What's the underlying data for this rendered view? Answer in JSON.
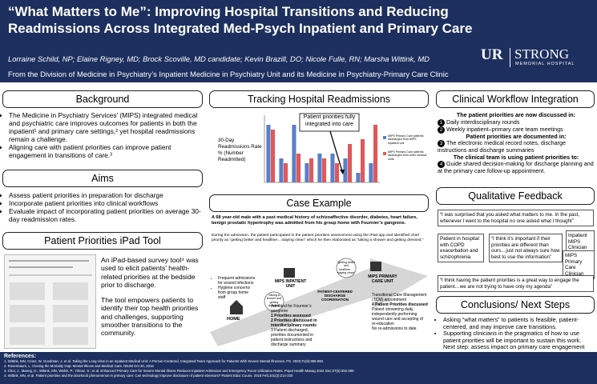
{
  "header": {
    "title": "“What Matters to Me”: Improving Hospital Transitions and Reducing Readmissions Across Integrated Med-Psych Inpatient and Primary Care",
    "authors": "Lorraine Schild, NP; Elaine Rigney, MD; Brock Scoville, MD candidate; Kevin Brazill, DO; Nicole Fulle, RN; Marsha Wittink, MD",
    "affiliation": "From the Division of Medicine in Psychiatry’s Inpatient Medicine in Psychiatry Unit and its Medicine in Psychiatry-Primary Care Clinic",
    "logo": {
      "ur": "UR",
      "strong": "STRONG",
      "sub": "MEMORIAL HOSPITAL"
    }
  },
  "background": {
    "heading": "Background",
    "bullets": [
      "The Medicine in Psychiatry Services’ (MIPS) integrated medical and psychiatric care improves outcomes for patients in both the inpatient¹ and primary care settings,² yet hospital readmissions remain a challenge.",
      "Aligning care with patient priorities can improve patient engagement in transitions of care.³"
    ]
  },
  "aims": {
    "heading": "Aims",
    "bullets": [
      "Assess patient priorities in preparation for discharge",
      "Incorporate patient priorities into clinical workflows",
      "Evaluate impact of incorporating patient priorities on average 30-day readmission rates."
    ]
  },
  "ipad": {
    "heading": "Patient Priorities iPad Tool",
    "paragraphs": [
      "An iPad-based survey tool⁴ was used to elicit patients’ health-related priorities at the bedside prior to discharge.",
      "The tool empowers patients to identify their top health priorities and challenges, supporting smoother transitions to the community."
    ]
  },
  "tracking": {
    "heading": "Tracking Hospital Readmissions",
    "chart": {
      "type": "bar",
      "y_label": "30-Day Readmissions Rate % (Number Readmitted)",
      "callout": "Patient priorities fully integrated into care",
      "ylim": [
        0,
        70
      ],
      "series": [
        {
          "name": "MIPS Primary Care patients discharged from MIPS inpatient unit",
          "color": "#5b7fc7",
          "values": [
            60,
            25,
            60,
            20,
            30,
            30,
            25,
            10,
            20
          ]
        },
        {
          "name": "MIPS Primary Care patients discharged from other medical units",
          "color": "#e0585b",
          "values": [
            55,
            20,
            30,
            25,
            25,
            20,
            40,
            45,
            60
          ]
        }
      ]
    }
  },
  "case": {
    "heading": "Case Example",
    "intro": "A 68 year-old male with a past medical history of schizoaffective disorder, diabetes, heart failure, benign prostatic hypertrophy was admitted from his group home with Fournier’s gangrene.",
    "detail": "During the admission, the patient participated in the patient priorities assessment using the iPad app and identified chief priority as “getting better and healthier…staying clean” which he then elaborated as “taking a shower and getting dressed.”",
    "home": {
      "label": "HOME",
      "notes": [
        "Frequent admissions for wound infections",
        "Hygiene concerns from group home staff"
      ]
    },
    "inpatient": {
      "label": "MIPS INPATIENT UNIT",
      "notes": [
        "Admitted for Fournier’s gangrene",
        "1 Priorities assessed",
        "2 Priorities discussed in interdisciplinary rounds",
        "3 Patient discharged, priorities documented in patient instructions and discharge summary"
      ]
    },
    "coordination": {
      "label": "PATIENT-CENTERED DISCHARGE COORDINATION"
    },
    "primary": {
      "label": "MIPS PRIMARY CARE UNIT",
      "notes": [
        "Transitional Care Management (TCM) appointment",
        "4 Patient Priorities discussed",
        "Patient showering daily, independently performing wound care and accepting of re-education",
        "No re-admissions to date"
      ]
    },
    "bubble1": "“getting better and healthier… staying clean”",
    "bubble2": "“taking a shower and getting dressed”"
  },
  "workflow": {
    "heading": "Clinical Workflow Integration",
    "lead1": "The patient priorities are now discussed in:",
    "item1": "Daily interdisciplinary rounds",
    "item2": "Weekly inpatient–primary care team meetings",
    "lead2": "Patient priorities are documented in:",
    "item3": "The electronic medical record notes, discharge instructions and discharge summaries",
    "lead3": "The clinical team is using patient priorities to:",
    "item4": "Guide shared decision-making for discharge planning and at the primary care follow-up appointment."
  },
  "feedback": {
    "heading": "Qualitative Feedback",
    "quote1": "“I was surprised that you asked what matters to me. In the past, whenever I went to the hospital no one asked what I thought”",
    "who1": "Patient in hospital with COPD exacerbation and schizophrenia",
    "quote2": "“I think it’s important if their priorities are different than ours…just not always sure how best to use the information”",
    "who2": "Inpatient MIPS Clinician",
    "who3": "MIPS Primary Care Clinician",
    "quote3": "“I think having the patient priorities is a great way to engage the patient…we are not trying to have only my agenda”"
  },
  "conclusions": {
    "heading": "Conclusions/ Next Steps",
    "bullets": [
      "Asking “what matters” to patients is feasible, patient-centered, and may improve care transitions.",
      "Supporting clinicians in the pragmatics of how to use patient priorities will be important to sustain this work. Next step: assess impact on primary care engagement"
    ]
  },
  "references": {
    "heading": "References:",
    "items": [
      "1. Wittink, MN, Cross, W, Goodman, J, et al. Taking the Long View in an Inpatient Medical Unit: A Person-Centered, Integrated Team Approach for Patients With Severe Mental Illnesses. PS. 2020;71(9):885-892.",
      "2. Rosenbaum, L. Closing the Mortality Gap: Mental Illness and Medical Care. NEJM Oct 20, 2016",
      "3. Choi, J., Maeng, D., Wittink, MN, Walsh, P., Yilmaz, S.; et al. Enhanced Primary Care for Severe Mental Illness Reduces Inpatient Admission and Emergency Room Utilization Rates. Popul Health Manag 2024 Dec;27(6):382-389",
      "4. Wittink, MN, et al. Patient priorities and the doorknob phenomenon in primary care: Can technology improve disclosure of patient stressors? Patient Educ Couns. 2018 Feb;101(2):214-220"
    ]
  }
}
